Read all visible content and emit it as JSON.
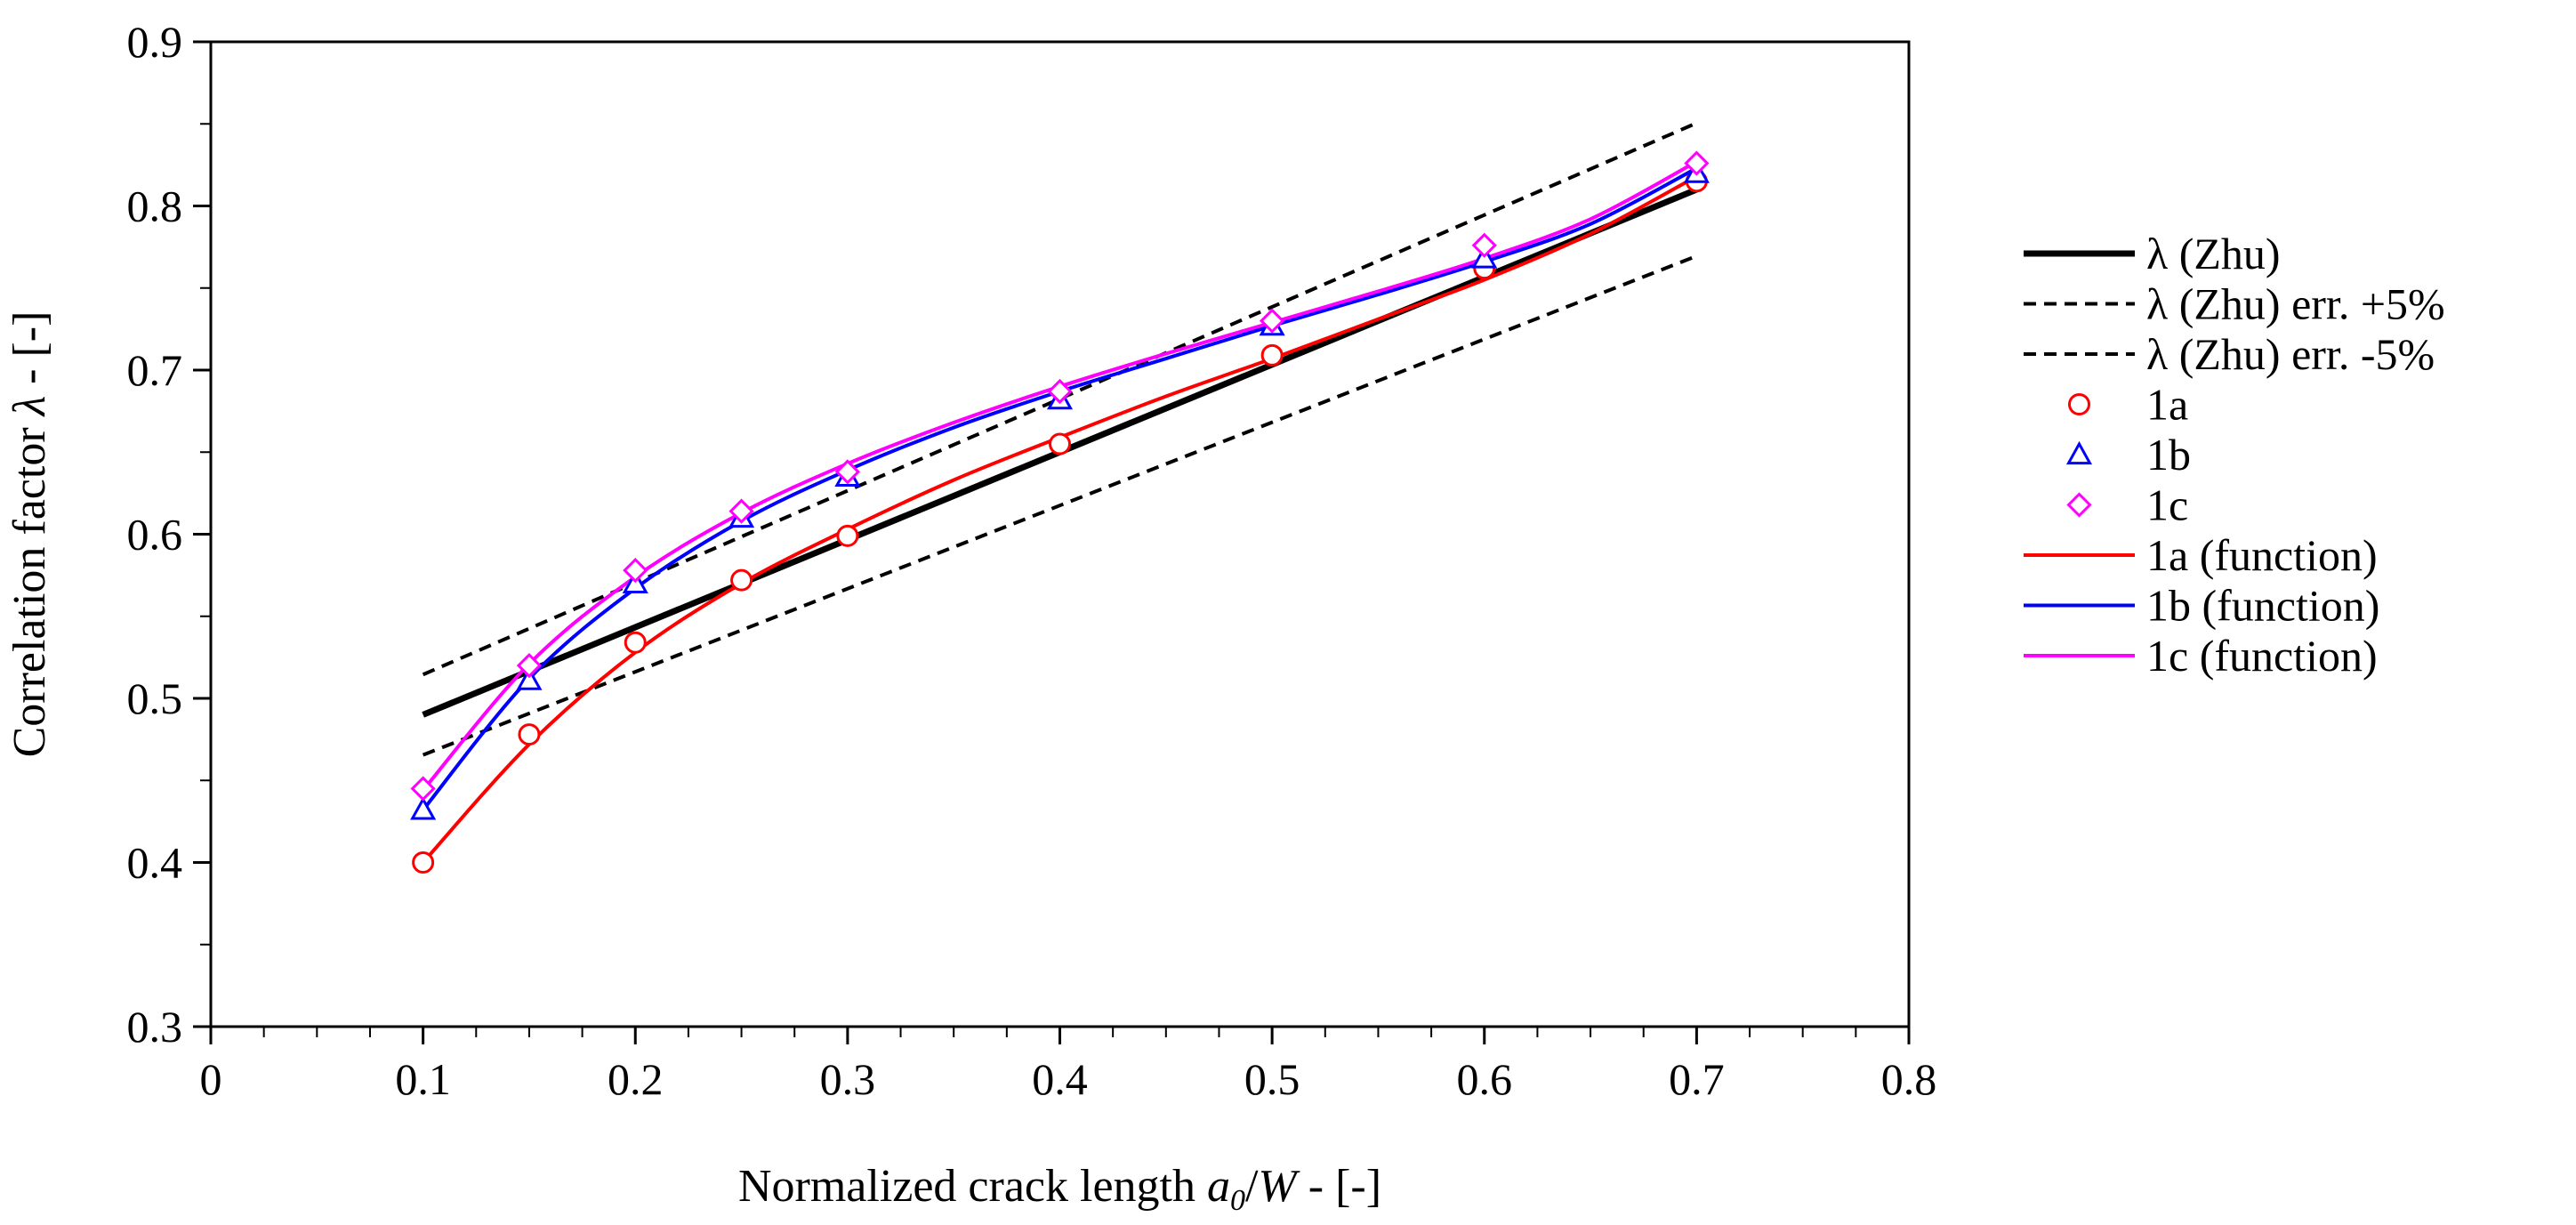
{
  "chart_data": {
    "type": "line",
    "title": "",
    "xlabel": {
      "prefix": "Normalized crack length ",
      "var_a": "a",
      "var_sub": "0",
      "slash": "/",
      "var_w": "W",
      "suffix": " - [-]"
    },
    "ylabel": {
      "prefix": "Correlation factor ",
      "lambda": "λ",
      "suffix": " - [-]"
    },
    "xlim": [
      0,
      0.8
    ],
    "ylim": [
      0.3,
      0.9
    ],
    "x_ticks": [
      "0",
      "0.1",
      "0.2",
      "0.3",
      "0.4",
      "0.5",
      "0.6",
      "0.7",
      "0.8"
    ],
    "y_ticks": [
      "0.3",
      "0.4",
      "0.5",
      "0.6",
      "0.7",
      "0.8",
      "0.9"
    ],
    "x_tick_values": [
      0,
      0.1,
      0.2,
      0.3,
      0.4,
      0.5,
      0.6,
      0.7,
      0.8
    ],
    "y_tick_values": [
      0.3,
      0.4,
      0.5,
      0.6,
      0.7,
      0.8,
      0.9
    ],
    "x_minor_step": 0.025,
    "y_minor_step": 0.05,
    "grid": false,
    "legend_position": "right",
    "colors": {
      "zhu": "#000000",
      "red": "#ff0000",
      "blue": "#0000ff",
      "magenta": "#ff00ff"
    },
    "lines": [
      {
        "name": "λ (Zhu)",
        "style": "solid",
        "color": "#000000",
        "x": [
          0.1,
          0.7
        ],
        "y": [
          0.49,
          0.81
        ]
      },
      {
        "name": "λ (Zhu) err. +5%",
        "style": "dashed",
        "color": "#000000",
        "x": [
          0.1,
          0.7
        ],
        "y": [
          0.5145,
          0.8505
        ]
      },
      {
        "name": "λ (Zhu) err. -5%",
        "style": "dashed",
        "color": "#000000",
        "x": [
          0.1,
          0.7
        ],
        "y": [
          0.4655,
          0.7695
        ]
      }
    ],
    "markers": [
      {
        "name": "1a",
        "marker": "circle",
        "color": "#ff0000",
        "x": [
          0.1,
          0.15,
          0.2,
          0.25,
          0.3,
          0.4,
          0.5,
          0.6,
          0.7
        ],
        "y": [
          0.4,
          0.478,
          0.534,
          0.572,
          0.599,
          0.655,
          0.709,
          0.762,
          0.815
        ]
      },
      {
        "name": "1b",
        "marker": "triangle",
        "color": "#0000ff",
        "x": [
          0.1,
          0.15,
          0.2,
          0.25,
          0.3,
          0.4,
          0.5,
          0.6,
          0.7
        ],
        "y": [
          0.432,
          0.511,
          0.57,
          0.61,
          0.635,
          0.682,
          0.727,
          0.768,
          0.82
        ]
      },
      {
        "name": "1c",
        "marker": "diamond",
        "color": "#ff00ff",
        "x": [
          0.1,
          0.15,
          0.2,
          0.25,
          0.3,
          0.4,
          0.5,
          0.6,
          0.7
        ],
        "y": [
          0.445,
          0.52,
          0.578,
          0.614,
          0.638,
          0.687,
          0.73,
          0.776,
          0.826
        ]
      }
    ],
    "functions": [
      {
        "name": "1a (function)",
        "color": "#ff0000",
        "x": [
          0.1,
          0.15,
          0.2,
          0.25,
          0.3,
          0.35,
          0.4,
          0.45,
          0.5,
          0.55,
          0.6,
          0.65,
          0.7
        ],
        "y": [
          0.4,
          0.472,
          0.528,
          0.57,
          0.603,
          0.633,
          0.659,
          0.684,
          0.707,
          0.731,
          0.755,
          0.783,
          0.818
        ]
      },
      {
        "name": "1b (function)",
        "color": "#0000ff",
        "x": [
          0.1,
          0.15,
          0.2,
          0.25,
          0.3,
          0.35,
          0.4,
          0.45,
          0.5,
          0.55,
          0.6,
          0.65,
          0.7
        ],
        "y": [
          0.432,
          0.512,
          0.567,
          0.608,
          0.639,
          0.665,
          0.687,
          0.707,
          0.727,
          0.746,
          0.766,
          0.789,
          0.823
        ]
      },
      {
        "name": "1c (function)",
        "color": "#ff00ff",
        "x": [
          0.1,
          0.15,
          0.2,
          0.25,
          0.3,
          0.35,
          0.4,
          0.45,
          0.5,
          0.55,
          0.6,
          0.65,
          0.7
        ],
        "y": [
          0.444,
          0.521,
          0.574,
          0.613,
          0.643,
          0.668,
          0.69,
          0.71,
          0.729,
          0.748,
          0.768,
          0.792,
          0.827
        ]
      }
    ],
    "legend": [
      {
        "label": "λ (Zhu)",
        "kind": "solid",
        "color": "#000000"
      },
      {
        "label": "λ (Zhu) err. +5%",
        "kind": "dashed",
        "color": "#000000"
      },
      {
        "label": "λ (Zhu) err. -5%",
        "kind": "dashed",
        "color": "#000000"
      },
      {
        "label": "1a",
        "kind": "circle",
        "color": "#ff0000"
      },
      {
        "label": "1b",
        "kind": "triangle",
        "color": "#0000ff"
      },
      {
        "label": "1c",
        "kind": "diamond",
        "color": "#ff00ff"
      },
      {
        "label": "1a (function)",
        "kind": "thin-line",
        "color": "#ff0000"
      },
      {
        "label": "1b (function)",
        "kind": "thin-line",
        "color": "#0000ff"
      },
      {
        "label": "1c (function)",
        "kind": "thin-line",
        "color": "#ff00ff"
      }
    ]
  }
}
